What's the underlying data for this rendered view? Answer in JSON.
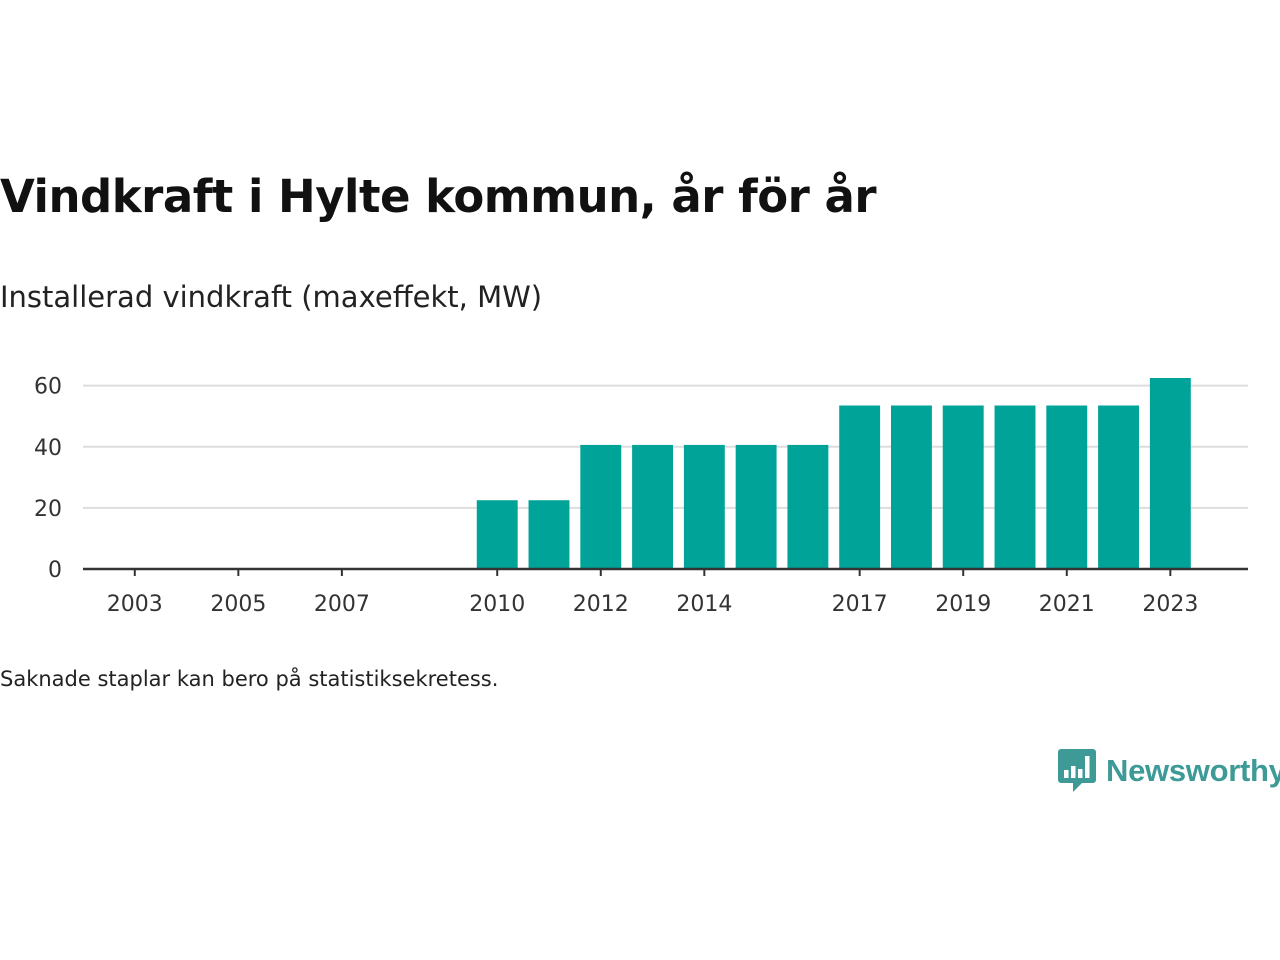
{
  "title": "Vindkraft i Hylte kommun, år för år",
  "subtitle": "Installerad vindkraft (maxeffekt, MW)",
  "footnote": "Saknade staplar kan bero på statistiksekretess.",
  "brand": {
    "name": "Newsworthy",
    "icon": "newsworthy-logo-icon",
    "color": "#3d9a97"
  },
  "chart_data": {
    "type": "bar",
    "title": "Vindkraft i Hylte kommun, år för år",
    "subtitle": "Installerad vindkraft (maxeffekt, MW)",
    "bar_color": "#00a398",
    "x": [
      2010,
      2011,
      2012,
      2013,
      2014,
      2015,
      2016,
      2017,
      2018,
      2019,
      2020,
      2021,
      2022,
      2023
    ],
    "values": [
      22.5,
      22.5,
      40.6,
      40.6,
      40.6,
      40.6,
      40.6,
      53.5,
      53.5,
      53.5,
      53.5,
      53.5,
      53.5,
      62.5
    ],
    "xlim": [
      2002,
      2024.5
    ],
    "ylim": [
      0,
      62.5
    ],
    "x_ticks": [
      2003,
      2005,
      2007,
      2010,
      2012,
      2014,
      2017,
      2019,
      2021,
      2023
    ],
    "y_ticks": [
      0,
      20,
      40,
      60
    ],
    "grid": "horizontal",
    "legend": "none"
  }
}
